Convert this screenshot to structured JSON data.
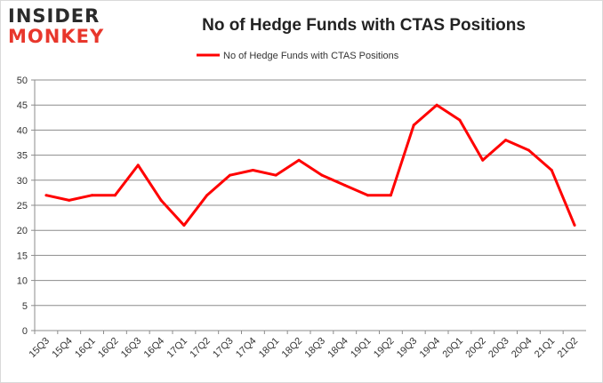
{
  "logo": {
    "line1": "INSIDER",
    "line2": "MONKEY"
  },
  "chart_data": {
    "type": "line",
    "title": "No of Hedge Funds with CTAS Positions",
    "categories": [
      "15Q3",
      "15Q4",
      "16Q1",
      "16Q2",
      "16Q3",
      "16Q4",
      "17Q1",
      "17Q2",
      "17Q3",
      "17Q4",
      "18Q1",
      "18Q2",
      "18Q3",
      "18Q4",
      "19Q1",
      "19Q2",
      "19Q3",
      "19Q4",
      "20Q1",
      "20Q2",
      "20Q3",
      "20Q4",
      "21Q1",
      "21Q2"
    ],
    "series": [
      {
        "name": "No of Hedge Funds with CTAS Positions",
        "color": "#ff0000",
        "values": [
          27,
          26,
          27,
          27,
          33,
          26,
          21,
          27,
          31,
          32,
          31,
          34,
          31,
          29,
          27,
          27,
          41,
          45,
          42,
          34,
          38,
          36,
          32,
          21
        ]
      }
    ],
    "ylim": [
      0,
      50
    ],
    "yticks": [
      0,
      5,
      10,
      15,
      20,
      25,
      30,
      35,
      40,
      45,
      50
    ],
    "grid": true,
    "legend": "top"
  }
}
